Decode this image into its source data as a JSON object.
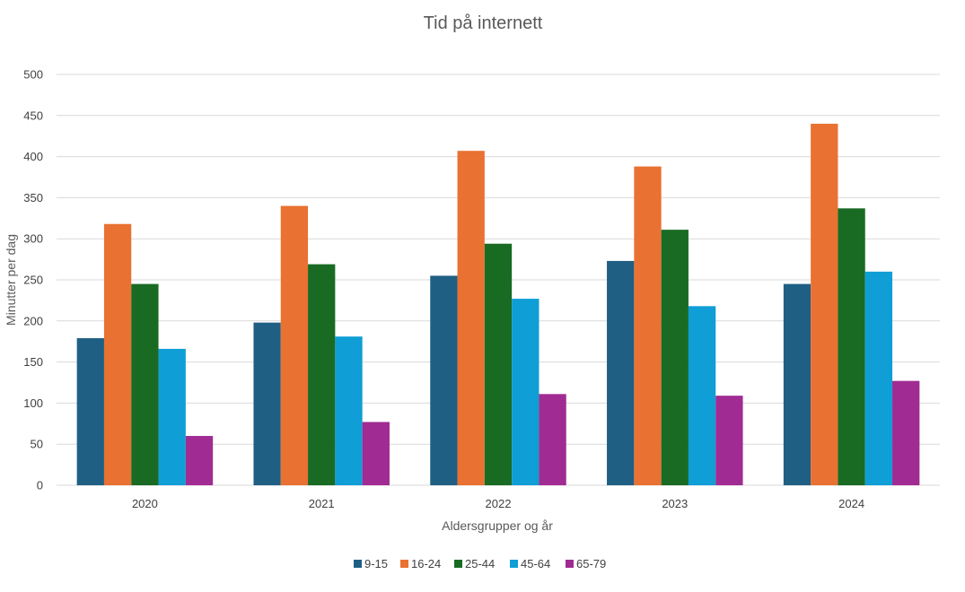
{
  "chart_data": {
    "type": "bar",
    "title": "Tid på internett",
    "xlabel": "Aldersgrupper og år",
    "ylabel": "Minutter per dag",
    "categories": [
      "2020",
      "2021",
      "2022",
      "2023",
      "2024"
    ],
    "ylim": [
      0,
      500
    ],
    "yticks": [
      0,
      50,
      100,
      150,
      200,
      250,
      300,
      350,
      400,
      450,
      500
    ],
    "grid": true,
    "legend_position": "bottom",
    "series": [
      {
        "name": "9-15",
        "color": "#1f5f84",
        "values": [
          179,
          198,
          255,
          273,
          245
        ]
      },
      {
        "name": "16-24",
        "color": "#e97132",
        "values": [
          318,
          340,
          407,
          388,
          440
        ]
      },
      {
        "name": "25-44",
        "color": "#196b24",
        "values": [
          245,
          269,
          294,
          311,
          337
        ]
      },
      {
        "name": "45-64",
        "color": "#0f9ed5",
        "values": [
          166,
          181,
          227,
          218,
          260
        ]
      },
      {
        "name": "65-79",
        "color": "#a02b93",
        "values": [
          60,
          77,
          111,
          109,
          127
        ]
      }
    ]
  }
}
